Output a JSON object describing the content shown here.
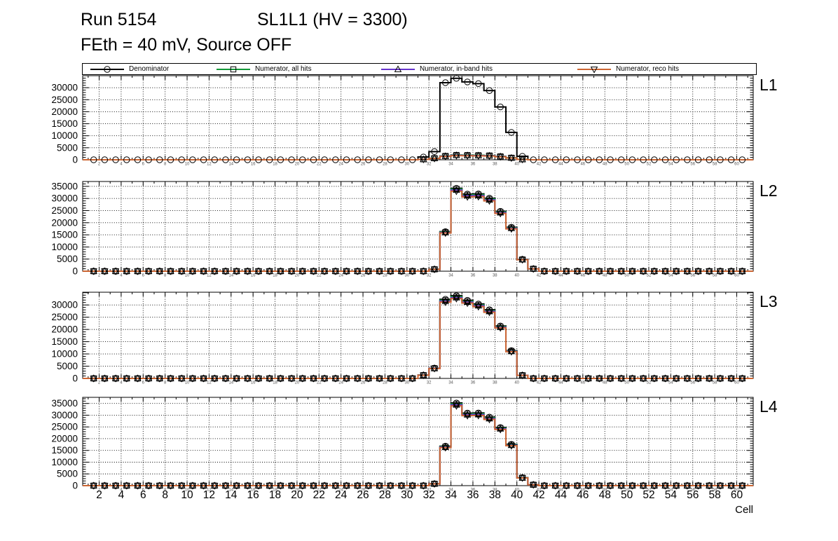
{
  "header": {
    "run_title": "Run 5154",
    "chamber_title": "SL1L1 (HV = 3300)",
    "subtitle": "FEth = 40 mV, Source OFF"
  },
  "legend": {
    "entries": [
      {
        "label": "Denominator",
        "color": "#000000",
        "marker": "circle"
      },
      {
        "label": "Numerator, all hits",
        "color": "#149939",
        "marker": "square"
      },
      {
        "label": "Numerator, in-band hits",
        "color": "#6633cc",
        "marker": "triangle-up"
      },
      {
        "label": "Numerator, reco hits",
        "color": "#cc6633",
        "marker": "triangle-down"
      }
    ]
  },
  "x_axis": {
    "label": "Cell",
    "min": 0.5,
    "max": 61.5,
    "tick_labels": [
      2,
      4,
      6,
      8,
      10,
      12,
      14,
      16,
      18,
      20,
      22,
      24,
      26,
      28,
      30,
      32,
      34,
      36,
      38,
      40,
      42,
      44,
      46,
      48,
      50,
      52,
      54,
      56,
      58,
      60
    ]
  },
  "chart_data": {
    "type": "bar",
    "style": "step-histogram",
    "note": "Hit counts vs cell number; bins span [cell, cell+1); all unlisted cells from 1 to 60 have value 0",
    "panels": [
      {
        "label": "L1",
        "y_axis_max": 35000,
        "y_label_max": 30000,
        "y_tick_step": 5000,
        "series": [
          {
            "name": "Denominator",
            "values": {
              "31": 1150,
              "32": 3400,
              "33": 32100,
              "34": 33900,
              "35": 32400,
              "36": 31700,
              "37": 28800,
              "38": 22000,
              "39": 11400,
              "40": 1450
            }
          },
          {
            "name": "Numerator, all hits",
            "values": {
              "31": 200,
              "32": 650,
              "33": 1600,
              "34": 2000,
              "35": 1950,
              "36": 1900,
              "37": 1800,
              "38": 1450,
              "39": 850,
              "40": 180
            }
          },
          {
            "name": "Numerator, in-band hits",
            "values": {
              "31": 180,
              "32": 600,
              "33": 1480,
              "34": 1850,
              "35": 1800,
              "36": 1760,
              "37": 1660,
              "38": 1340,
              "39": 780,
              "40": 160
            }
          },
          {
            "name": "Numerator, reco hits",
            "values": {
              "31": 160,
              "32": 550,
              "33": 1380,
              "34": 1720,
              "35": 1680,
              "36": 1640,
              "37": 1550,
              "38": 1250,
              "39": 720,
              "40": 150
            }
          }
        ]
      },
      {
        "label": "L2",
        "y_axis_max": 37000,
        "y_label_max": 35000,
        "y_tick_step": 5000,
        "series": [
          {
            "name": "Denominator",
            "values": {
              "32": 800,
              "33": 16300,
              "34": 34200,
              "35": 31800,
              "36": 31900,
              "37": 30100,
              "38": 24700,
              "39": 18100,
              "40": 4900,
              "41": 1000
            }
          },
          {
            "name": "Numerator, all hits",
            "values": {
              "32": 790,
              "33": 16150,
              "34": 33900,
              "35": 31500,
              "36": 31600,
              "37": 29800,
              "38": 24450,
              "39": 17930,
              "40": 4850,
              "41": 990
            }
          },
          {
            "name": "Numerator, in-band hits",
            "values": {
              "32": 775,
              "33": 15950,
              "34": 33450,
              "35": 31100,
              "36": 31200,
              "37": 29400,
              "38": 24150,
              "39": 17700,
              "40": 4790,
              "41": 975
            }
          },
          {
            "name": "Numerator, reco hits",
            "values": {
              "32": 760,
              "33": 15750,
              "34": 33000,
              "35": 30650,
              "36": 30750,
              "37": 29000,
              "38": 23800,
              "39": 17450,
              "40": 4720,
              "41": 960
            }
          }
        ]
      },
      {
        "label": "L3",
        "y_axis_max": 35200,
        "y_label_max": 30000,
        "y_tick_step": 5000,
        "series": [
          {
            "name": "Denominator",
            "values": {
              "31": 1350,
              "32": 4200,
              "33": 32300,
              "34": 33800,
              "35": 31900,
              "36": 30400,
              "37": 28050,
              "38": 21400,
              "39": 11350,
              "40": 1300
            }
          },
          {
            "name": "Numerator, all hits",
            "values": {
              "31": 1330,
              "32": 4150,
              "33": 31950,
              "34": 33400,
              "35": 31550,
              "36": 30050,
              "37": 27700,
              "38": 21150,
              "39": 11200,
              "40": 1285
            }
          },
          {
            "name": "Numerator, in-band hits",
            "values": {
              "31": 1310,
              "32": 4100,
              "33": 31550,
              "34": 33000,
              "35": 31150,
              "36": 29700,
              "37": 27350,
              "38": 20900,
              "39": 11050,
              "40": 1270
            }
          },
          {
            "name": "Numerator, reco hits",
            "values": {
              "31": 1290,
              "32": 4050,
              "33": 31150,
              "34": 32600,
              "35": 30750,
              "36": 29300,
              "37": 27000,
              "38": 20650,
              "39": 10900,
              "40": 1255
            }
          }
        ]
      },
      {
        "label": "L4",
        "y_axis_max": 37600,
        "y_label_max": 35000,
        "y_tick_step": 5000,
        "series": [
          {
            "name": "Denominator",
            "values": {
              "32": 800,
              "33": 16800,
              "34": 35200,
              "35": 30900,
              "36": 30950,
              "37": 29200,
              "38": 24750,
              "39": 17600,
              "40": 3400,
              "41": 400
            }
          },
          {
            "name": "Numerator, all hits",
            "values": {
              "32": 785,
              "33": 16600,
              "34": 34850,
              "35": 30600,
              "36": 30650,
              "37": 28900,
              "38": 24500,
              "39": 17420,
              "40": 3360,
              "41": 392
            }
          },
          {
            "name": "Numerator, in-band hits",
            "values": {
              "32": 770,
              "33": 16400,
              "34": 34400,
              "35": 30200,
              "36": 30250,
              "37": 28550,
              "38": 24200,
              "39": 17200,
              "40": 3320,
              "41": 386
            }
          },
          {
            "name": "Numerator, reco hits",
            "values": {
              "32": 755,
              "33": 16200,
              "34": 33950,
              "35": 29800,
              "36": 29850,
              "37": 28200,
              "38": 23900,
              "39": 17000,
              "40": 3280,
              "41": 380
            }
          }
        ]
      }
    ]
  }
}
